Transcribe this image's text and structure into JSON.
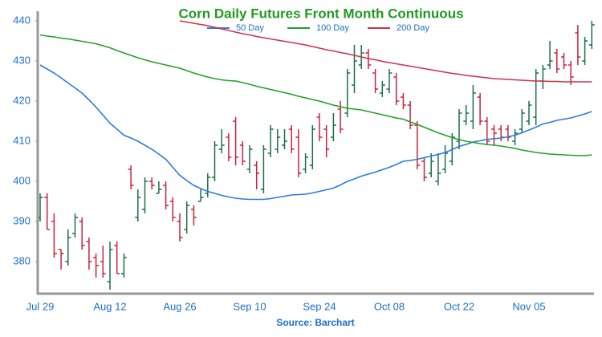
{
  "chart_data": {
    "type": "ohlc",
    "title": "Corn Daily Futures Front Month Continuous",
    "source": "Source: Barchart",
    "categories": [
      "Jul 29",
      null,
      null,
      null,
      null,
      null,
      null,
      null,
      null,
      null,
      "Aug 12",
      null,
      null,
      null,
      null,
      null,
      null,
      null,
      null,
      null,
      "Aug 26",
      null,
      null,
      null,
      null,
      null,
      null,
      null,
      null,
      null,
      "Sep 10",
      null,
      null,
      null,
      null,
      null,
      null,
      null,
      null,
      null,
      "Sep 24",
      null,
      null,
      null,
      null,
      null,
      null,
      null,
      null,
      null,
      "Oct 08",
      null,
      null,
      null,
      null,
      null,
      null,
      null,
      null,
      null,
      "Oct 22",
      null,
      null,
      null,
      null,
      null,
      null,
      null,
      null,
      null,
      "Nov 05",
      null,
      null,
      null,
      null,
      null,
      null,
      null,
      null,
      null
    ],
    "open": [
      391,
      396,
      390,
      383,
      380,
      387,
      390,
      385,
      381,
      380,
      375,
      384,
      377,
      403,
      391,
      393,
      400,
      397,
      399,
      395,
      390,
      388,
      393,
      395,
      397,
      401,
      408,
      411,
      415,
      409,
      403,
      404,
      398,
      407,
      408,
      409,
      413,
      411,
      403,
      404,
      416,
      413,
      411,
      418,
      417,
      424,
      429,
      432,
      427,
      422,
      423,
      426,
      421,
      419,
      414,
      405,
      402,
      400,
      403,
      405,
      410,
      415,
      415,
      421,
      415,
      413,
      413,
      413,
      410,
      413,
      415,
      416,
      425,
      429,
      432,
      431,
      429,
      437,
      430,
      434
    ],
    "high": [
      397,
      397,
      392,
      383,
      388,
      392,
      391,
      386,
      382,
      384,
      385,
      385,
      382,
      404,
      398,
      401,
      401,
      400,
      400,
      396,
      392,
      395,
      394,
      398,
      402,
      410,
      413,
      412,
      416,
      410,
      409,
      405,
      409,
      414,
      413,
      413,
      414,
      413,
      407,
      414,
      417,
      414,
      417,
      420,
      428,
      434,
      434,
      433,
      428,
      425,
      428,
      427,
      422,
      420,
      415,
      406,
      407,
      407,
      409,
      412,
      418,
      419,
      424,
      422,
      416,
      414,
      414,
      414,
      413,
      418,
      420,
      428,
      429,
      435,
      433,
      432,
      430,
      439,
      436,
      440
    ],
    "low": [
      390,
      388,
      381,
      378,
      379,
      386,
      383,
      378,
      376,
      376,
      373,
      377,
      376,
      398,
      390,
      392,
      398,
      397,
      393,
      390,
      385,
      387,
      389,
      395,
      396,
      400,
      407,
      405,
      404,
      404,
      402,
      398,
      397,
      406,
      407,
      408,
      407,
      401,
      402,
      403,
      410,
      406,
      410,
      412,
      416,
      422,
      428,
      428,
      422,
      421,
      422,
      419,
      418,
      413,
      403,
      400,
      401,
      399,
      402,
      404,
      408,
      414,
      413,
      414,
      409,
      409,
      410,
      410,
      409,
      412,
      414,
      414,
      423,
      428,
      427,
      428,
      424,
      429,
      429,
      433
    ],
    "close": [
      396,
      388,
      382,
      382,
      386,
      391,
      384,
      380,
      379,
      377,
      383,
      377,
      381,
      399,
      396,
      400,
      399,
      398,
      394,
      391,
      386,
      394,
      391,
      396,
      401,
      409,
      409,
      406,
      406,
      405,
      408,
      402,
      408,
      413,
      411,
      410,
      408,
      402,
      406,
      413,
      411,
      408,
      414,
      413,
      427,
      430,
      432,
      429,
      423,
      424,
      427,
      420,
      419,
      414,
      404,
      401,
      405,
      402,
      407,
      411,
      417,
      417,
      422,
      415,
      410,
      412,
      411,
      411,
      412,
      417,
      419,
      427,
      428,
      430,
      428,
      429,
      426,
      431,
      435,
      439
    ],
    "up_color": "#1d6e4a",
    "down_color": "#c8243c",
    "series": [
      {
        "name": "50 Day",
        "color": "#2b7bde",
        "values": [
          429,
          428,
          427,
          425.8,
          424.5,
          423.3,
          422,
          420.3,
          418.5,
          416.5,
          414.5,
          413,
          411.5,
          410.8,
          410,
          409,
          408,
          406.8,
          405.5,
          403.5,
          401.5,
          400.2,
          399,
          398.2,
          397.5,
          397,
          396.5,
          396.1,
          395.8,
          395.6,
          395.5,
          395.5,
          395.5,
          395.7,
          396,
          396.3,
          396.6,
          396.7,
          396.8,
          397.1,
          397.5,
          397.9,
          398.3,
          399.1,
          400,
          400.6,
          401.3,
          401.8,
          402.3,
          402.9,
          403.5,
          404.2,
          405,
          405.2,
          405.5,
          405.9,
          406.3,
          406.7,
          407.2,
          407.9,
          408.7,
          409.2,
          409.8,
          410.1,
          410.5,
          410.6,
          410.8,
          411.1,
          411.5,
          412.1,
          412.8,
          413.5,
          414.3,
          414.7,
          415.2,
          415.5,
          415.8,
          416.3,
          416.8,
          417.4
        ]
      },
      {
        "name": "100 Day",
        "color": "#22a02a",
        "values": [
          436.5,
          436.2,
          436,
          435.7,
          435.5,
          435.2,
          434.9,
          434.6,
          434.3,
          433.8,
          433.3,
          432.6,
          432,
          431.4,
          430.8,
          430.3,
          429.8,
          429.4,
          429,
          428.6,
          428.2,
          427.6,
          427,
          426.5,
          426,
          425.6,
          425.3,
          425.1,
          425,
          424.6,
          424.2,
          423.7,
          423.3,
          422.9,
          422.5,
          422.1,
          421.7,
          421.2,
          420.8,
          420.4,
          420,
          419.5,
          419,
          418.6,
          418.2,
          418,
          417.8,
          417.4,
          417,
          416.6,
          416.2,
          415.8,
          415.5,
          414.8,
          414.2,
          413.5,
          412.8,
          412.1,
          411.5,
          410.9,
          410.4,
          410,
          409.7,
          409.4,
          409.2,
          409,
          408.8,
          408.5,
          408.2,
          407.8,
          407.5,
          407.2,
          407,
          406.8,
          406.7,
          406.6,
          406.5,
          406.4,
          406.4,
          406.6
        ]
      },
      {
        "name": "200 Day",
        "color": "#d0304a",
        "values": [
          null,
          null,
          null,
          null,
          null,
          null,
          null,
          null,
          null,
          null,
          null,
          null,
          null,
          null,
          null,
          null,
          null,
          null,
          null,
          null,
          440,
          439.7,
          439.4,
          439.1,
          438.8,
          438.4,
          438,
          437.6,
          437.2,
          436.8,
          436.5,
          436.1,
          435.8,
          435.5,
          435.2,
          434.9,
          434.6,
          434.3,
          434,
          433.6,
          433.2,
          432.8,
          432.5,
          432.1,
          431.8,
          431.4,
          431,
          430.6,
          430.3,
          429.9,
          429.6,
          429.3,
          429,
          428.7,
          428.4,
          428.1,
          427.8,
          427.5,
          427.2,
          426.9,
          426.7,
          426.4,
          426.2,
          426,
          425.8,
          425.6,
          425.5,
          425.4,
          425.3,
          425.2,
          425.1,
          425,
          425,
          424.9,
          424.9,
          424.8,
          424.8,
          424.8,
          424.8,
          424.8
        ]
      }
    ],
    "ylim": [
      372,
      441
    ],
    "yticks": [
      380,
      390,
      400,
      410,
      420,
      430,
      440
    ]
  }
}
